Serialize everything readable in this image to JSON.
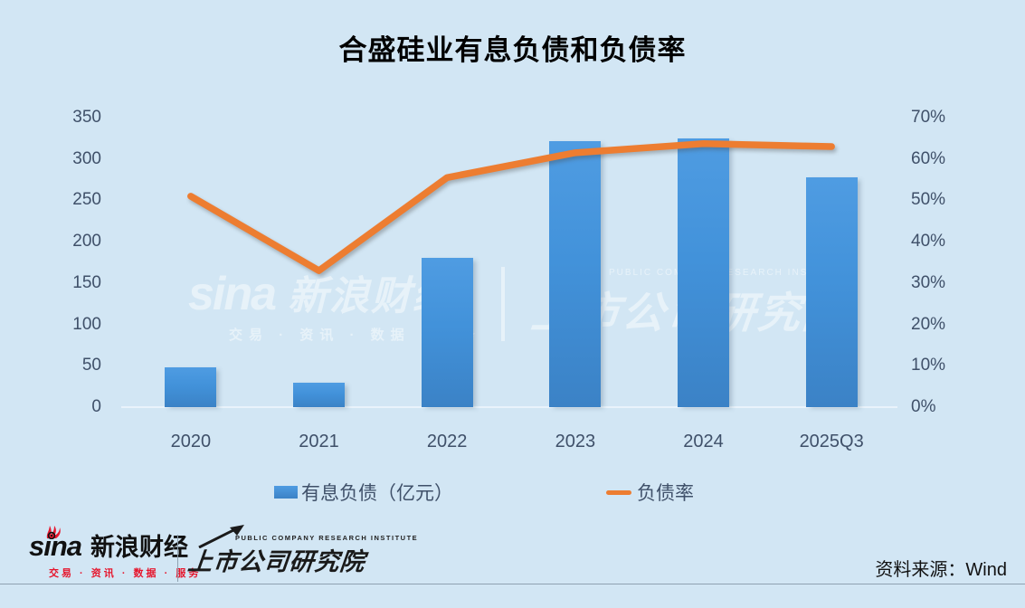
{
  "title": "合盛硅业有息负债和负债率",
  "chart_data": {
    "type": "bar",
    "subtype": "bar+line combo, dual axis",
    "categories": [
      "2020",
      "2021",
      "2022",
      "2023",
      "2024",
      "2025Q3"
    ],
    "series": [
      {
        "name": "有息负债（亿元）",
        "type": "bar",
        "axis": "left",
        "values": [
          48,
          29,
          181,
          322,
          325,
          278
        ]
      },
      {
        "name": "负债率",
        "type": "line",
        "axis": "right",
        "unit": "%",
        "values": [
          51,
          33,
          55.5,
          61.5,
          63.7,
          63
        ]
      }
    ],
    "left_axis": {
      "ticks": [
        "350",
        "300",
        "250",
        "200",
        "150",
        "100",
        "50",
        "0"
      ],
      "min": 0,
      "max": 350
    },
    "right_axis": {
      "ticks": [
        "70%",
        "60%",
        "50%",
        "40%",
        "30%",
        "20%",
        "10%",
        "0%"
      ],
      "min": 0,
      "max": 70
    },
    "grid": "off",
    "legend_position": "bottom"
  },
  "legend": {
    "items": [
      {
        "label": "有息负债（亿元）",
        "swatch": "bar"
      },
      {
        "label": "负债率",
        "swatch": "line"
      }
    ]
  },
  "watermark": {
    "sina_word": "sina",
    "sina_cn": "新浪财经",
    "tagline": "交易 · 资讯 · 数据 · 服务",
    "institute_en": "PUBLIC COMPANY RESEARCH INSTITUTE",
    "institute": "上市公司研究院"
  },
  "footer": {
    "sina_word": "sina",
    "sina_cn": "新浪财经",
    "tagline": "交易 · 资讯 · 数据 · 服务",
    "institute_en": "PUBLIC COMPANY RESEARCH INSTITUTE",
    "institute": "上市公司研究院",
    "source": "资料来源：Wind"
  },
  "colors": {
    "background": "#d2e6f4",
    "bar_top": "#4f9ce2",
    "bar_mid": "#4292da",
    "bar_bottom": "#3b82c6",
    "line": "#ed7d31",
    "axis_text": "#3f5069",
    "title": "#000000",
    "sina_red": "#e6162d"
  }
}
